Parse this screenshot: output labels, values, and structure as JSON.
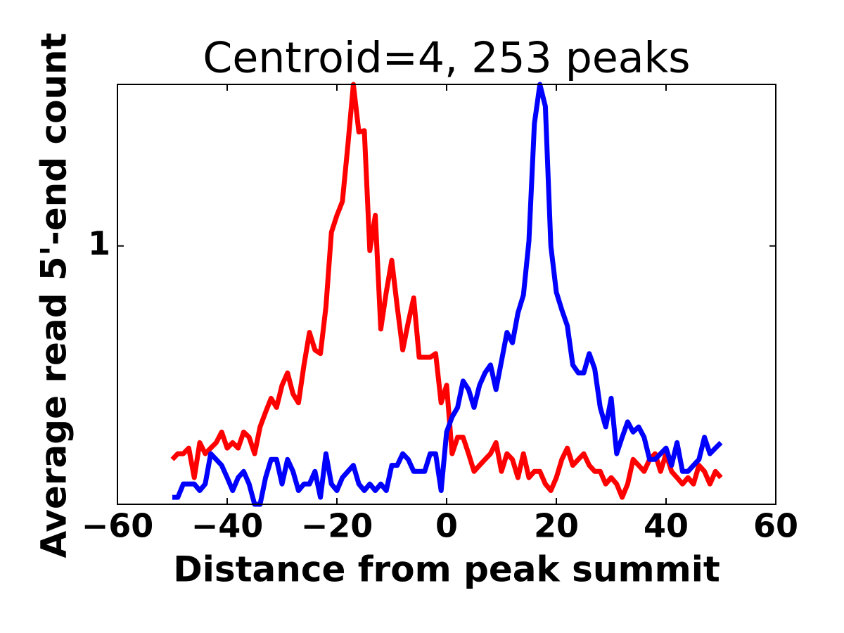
{
  "chart_data": {
    "type": "line",
    "title": "Centroid=4, 253 peaks",
    "xlabel": "Distance from peak summit",
    "ylabel": "Average read 5'-end count",
    "x": [
      -50,
      -49,
      -48,
      -47,
      -46,
      -45,
      -44,
      -43,
      -42,
      -41,
      -40,
      -39,
      -38,
      -37,
      -36,
      -35,
      -34,
      -33,
      -32,
      -31,
      -30,
      -29,
      -28,
      -27,
      -26,
      -25,
      -24,
      -23,
      -22,
      -21,
      -20,
      -19,
      -18,
      -17,
      -16,
      -15,
      -14,
      -13,
      -12,
      -11,
      -10,
      -9,
      -8,
      -7,
      -6,
      -5,
      -4,
      -3,
      -2,
      -1,
      0,
      1,
      2,
      3,
      4,
      5,
      6,
      7,
      8,
      9,
      10,
      11,
      12,
      13,
      14,
      15,
      16,
      17,
      18,
      19,
      20,
      21,
      22,
      23,
      24,
      25,
      26,
      27,
      28,
      29,
      30,
      31,
      32,
      33,
      34,
      35,
      36,
      37,
      38,
      39,
      40,
      41,
      42,
      43,
      44,
      45,
      46,
      47,
      48,
      49,
      50
    ],
    "series": [
      {
        "color": "#ff0000",
        "values": [
          0.4,
          0.41,
          0.41,
          0.42,
          0.37,
          0.43,
          0.41,
          0.42,
          0.43,
          0.45,
          0.42,
          0.43,
          0.42,
          0.45,
          0.44,
          0.41,
          0.46,
          0.49,
          0.52,
          0.5,
          0.55,
          0.58,
          0.53,
          0.51,
          0.6,
          0.69,
          0.64,
          0.63,
          0.77,
          1.06,
          1.14,
          1.21,
          1.54,
          2.0,
          1.63,
          1.64,
          0.98,
          1.14,
          0.7,
          0.82,
          0.94,
          0.77,
          0.64,
          0.72,
          0.8,
          0.62,
          0.62,
          0.62,
          0.63,
          0.51,
          0.55,
          0.41,
          0.44,
          0.44,
          0.41,
          0.38,
          0.39,
          0.4,
          0.41,
          0.43,
          0.38,
          0.41,
          0.4,
          0.37,
          0.41,
          0.37,
          0.38,
          0.38,
          0.36,
          0.35,
          0.37,
          0.4,
          0.42,
          0.39,
          0.4,
          0.41,
          0.39,
          0.38,
          0.38,
          0.36,
          0.37,
          0.36,
          0.34,
          0.36,
          0.4,
          0.39,
          0.38,
          0.4,
          0.41,
          0.38,
          0.41,
          0.38,
          0.37,
          0.36,
          0.37,
          0.36,
          0.39,
          0.38,
          0.36,
          0.38,
          0.37
        ]
      },
      {
        "color": "#0000ff",
        "values": [
          0.34,
          0.34,
          0.36,
          0.36,
          0.36,
          0.35,
          0.36,
          0.41,
          0.4,
          0.39,
          0.37,
          0.35,
          0.37,
          0.38,
          0.36,
          0.33,
          0.33,
          0.37,
          0.4,
          0.4,
          0.36,
          0.4,
          0.38,
          0.35,
          0.36,
          0.36,
          0.38,
          0.34,
          0.41,
          0.36,
          0.35,
          0.37,
          0.38,
          0.39,
          0.36,
          0.35,
          0.36,
          0.35,
          0.36,
          0.35,
          0.39,
          0.39,
          0.41,
          0.4,
          0.38,
          0.38,
          0.38,
          0.41,
          0.41,
          0.35,
          0.45,
          0.48,
          0.5,
          0.56,
          0.54,
          0.5,
          0.55,
          0.58,
          0.6,
          0.54,
          0.61,
          0.69,
          0.66,
          0.75,
          0.81,
          1.02,
          1.69,
          2.0,
          1.82,
          1.0,
          0.82,
          0.76,
          0.71,
          0.6,
          0.58,
          0.58,
          0.63,
          0.59,
          0.5,
          0.46,
          0.52,
          0.41,
          0.44,
          0.47,
          0.45,
          0.46,
          0.44,
          0.4,
          0.4,
          0.41,
          0.42,
          0.39,
          0.43,
          0.38,
          0.38,
          0.39,
          0.4,
          0.44,
          0.41,
          0.42,
          0.43
        ]
      }
    ],
    "xlim": [
      -60,
      60
    ],
    "xticks": [
      {
        "value": -60,
        "label": "−60"
      },
      {
        "value": -40,
        "label": "−40"
      },
      {
        "value": -20,
        "label": "−20"
      },
      0,
      20,
      40,
      60
    ],
    "ylim": [
      0.33,
      2.0
    ],
    "yticks": [
      1
    ],
    "yscale": "log",
    "grid": false
  }
}
